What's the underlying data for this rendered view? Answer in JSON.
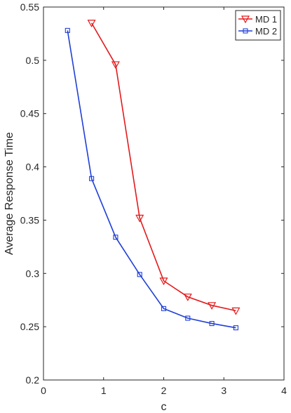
{
  "chart_data": {
    "type": "line",
    "xlabel": "c",
    "ylabel": "Average Response Time",
    "xlim": [
      0,
      4
    ],
    "ylim": [
      0.2,
      0.55
    ],
    "xticks": [
      0,
      1,
      2,
      3,
      4
    ],
    "xtick_labels": [
      "0",
      "1",
      "2",
      "3",
      "4"
    ],
    "yticks": [
      0.2,
      0.25,
      0.3,
      0.35,
      0.4,
      0.45,
      0.5,
      0.55
    ],
    "ytick_labels": [
      "0.2",
      "0.25",
      "0.3",
      "0.35",
      "0.4",
      "0.45",
      "0.5",
      "0.55"
    ],
    "grid": false,
    "legend_position": "top-right",
    "series": [
      {
        "name": "MD 1",
        "color": "#e31a1c",
        "marker": "triangle-down",
        "x": [
          0.8,
          1.2,
          1.6,
          2.0,
          2.4,
          2.8,
          3.2
        ],
        "y": [
          0.535,
          0.496,
          0.352,
          0.293,
          0.278,
          0.27,
          0.265
        ]
      },
      {
        "name": "MD 2",
        "color": "#1f3fd6",
        "marker": "square",
        "x": [
          0.4,
          0.8,
          1.2,
          1.6,
          2.0,
          2.4,
          2.8,
          3.2
        ],
        "y": [
          0.528,
          0.389,
          0.334,
          0.299,
          0.267,
          0.258,
          0.253,
          0.249
        ]
      }
    ]
  }
}
